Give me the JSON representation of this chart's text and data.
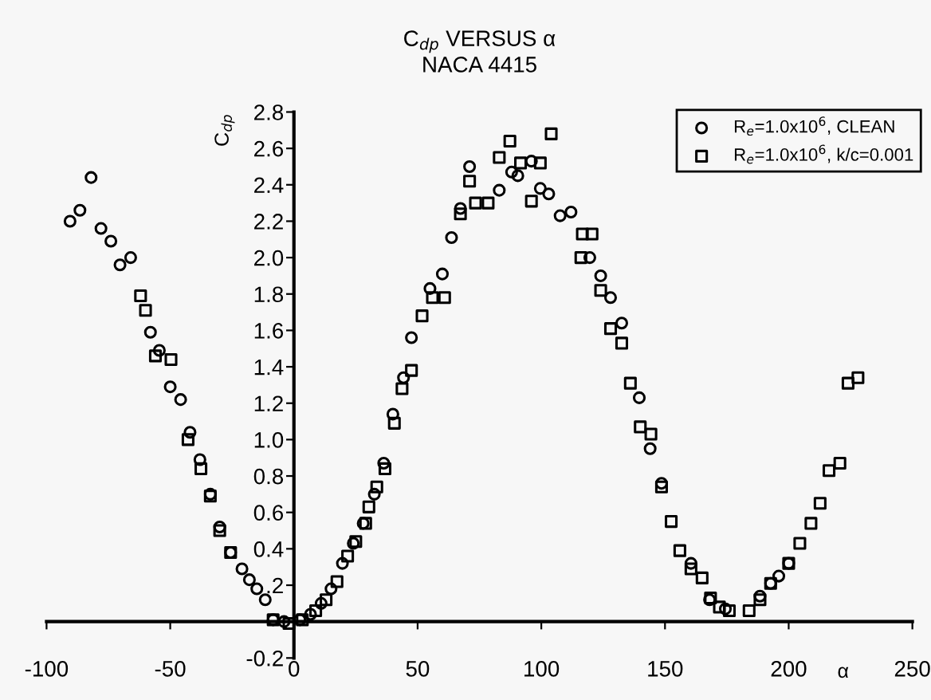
{
  "chart_data": {
    "type": "scatter",
    "title": "C$_{dp}$ VERSUS α\nNACA 4415",
    "xlabel": "α",
    "ylabel": "C$_{dp}$",
    "xlim": [
      -100,
      250
    ],
    "xticks": [
      -100,
      -50,
      0,
      50,
      100,
      150,
      200,
      250
    ],
    "ylim": [
      -0.2,
      2.8
    ],
    "yticks": [
      -0.2,
      {
        "value": 0,
        "label": null
      },
      {
        "value": 0.2,
        "label": ".2"
      },
      0.4,
      0.6,
      0.8,
      {
        "value": 1.0,
        "label": "1.0"
      },
      1.2,
      1.4,
      1.6,
      1.8,
      {
        "value": 2.0,
        "label": "2.0"
      },
      2.2,
      2.4,
      2.6,
      2.8
    ],
    "grid": false,
    "legend": "top right",
    "series": [
      {
        "name": "R$_{e}$=1.0x10$^{6}$, CLEAN",
        "color": "#000000",
        "marker": "circle",
        "x": [
          -90.5,
          -86.5,
          -82,
          -78,
          -74,
          -70.3,
          -66,
          -58,
          -54.4,
          -50,
          -45.8,
          -42,
          -38,
          -33.8,
          -30,
          -25.6,
          -21,
          -18,
          -15,
          -11.6,
          -8.4,
          -4,
          2.4,
          6.7,
          11,
          15,
          19.6,
          24,
          28,
          32.5,
          36.3,
          40,
          44.3,
          47.5,
          55,
          60,
          63.7,
          67.3,
          71,
          83,
          88,
          90.5,
          96,
          99.6,
          103,
          107.6,
          112,
          119.6,
          124,
          128,
          132.5,
          139.6,
          144,
          148.6,
          160.5,
          168,
          174.4,
          188.4,
          192.7,
          196,
          200
        ],
        "values": [
          2.2,
          2.26,
          2.44,
          2.16,
          2.09,
          1.96,
          2.0,
          1.59,
          1.49,
          1.29,
          1.22,
          1.04,
          0.89,
          0.7,
          0.52,
          0.38,
          0.29,
          0.23,
          0.18,
          0.12,
          0.01,
          0.0,
          0.01,
          0.04,
          0.1,
          0.18,
          0.32,
          0.43,
          0.54,
          0.7,
          0.87,
          1.14,
          1.34,
          1.56,
          1.83,
          1.91,
          2.11,
          2.27,
          2.5,
          2.37,
          2.47,
          2.45,
          2.53,
          2.38,
          2.35,
          2.23,
          2.25,
          2.0,
          1.9,
          1.78,
          1.64,
          1.23,
          0.95,
          0.76,
          0.32,
          0.12,
          0.07,
          0.14,
          0.21,
          0.25,
          0.32
        ]
      },
      {
        "name": "R$_{e}$=1.0x10$^{6}$, k/c=0.001",
        "color": "#000000",
        "marker": "square",
        "x": [
          -62,
          -60,
          -56,
          -49.7,
          -42.8,
          -37.6,
          -33.8,
          -30,
          -25.6,
          -8.4,
          -2,
          3.4,
          8.8,
          13,
          17.4,
          21.7,
          25,
          29,
          30.3,
          33.5,
          36.8,
          40.6,
          43.7,
          47.5,
          51.8,
          56,
          60.9,
          67.3,
          71,
          73.4,
          78.5,
          83,
          87.3,
          91.6,
          96,
          99.6,
          104,
          116.6,
          120.5,
          116,
          124,
          128,
          132.5,
          136,
          140,
          144.3,
          148.6,
          152.5,
          156,
          160.5,
          165,
          168.4,
          172,
          176,
          184,
          188.4,
          192.7,
          200,
          204.5,
          209,
          212.7,
          216.3,
          220.7,
          224,
          228
        ],
        "values": [
          1.79,
          1.71,
          1.46,
          1.44,
          1.0,
          0.84,
          0.69,
          0.5,
          0.38,
          0.01,
          -0.01,
          0.01,
          0.06,
          0.12,
          0.22,
          0.36,
          0.44,
          0.54,
          0.63,
          0.74,
          0.84,
          1.09,
          1.28,
          1.38,
          1.68,
          1.78,
          1.78,
          2.24,
          2.42,
          2.3,
          2.3,
          2.55,
          2.64,
          2.52,
          2.31,
          2.52,
          2.68,
          2.13,
          2.13,
          2.0,
          1.82,
          1.61,
          1.53,
          1.31,
          1.07,
          1.03,
          0.74,
          0.55,
          0.39,
          0.29,
          0.24,
          0.13,
          0.08,
          0.06,
          0.06,
          0.12,
          0.21,
          0.32,
          0.43,
          0.54,
          0.65,
          0.83,
          0.87,
          1.31,
          1.34
        ]
      }
    ]
  }
}
